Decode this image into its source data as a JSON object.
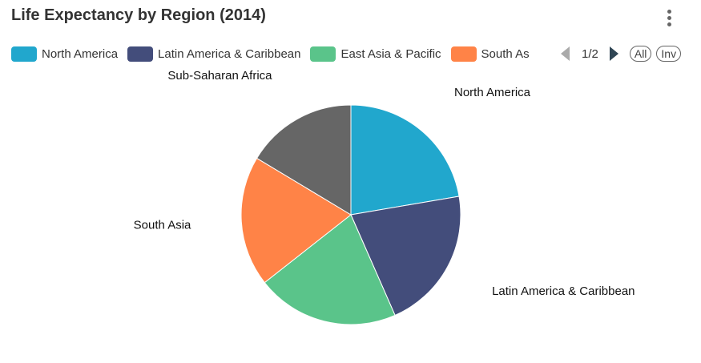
{
  "header": {
    "title": "Life Expectancy by Region (2014)"
  },
  "legend": {
    "items": [
      {
        "label": "North America",
        "color": "#21a7cd"
      },
      {
        "label": "Latin America & Caribbean",
        "color": "#434d7b"
      },
      {
        "label": "East Asia & Pacific",
        "color": "#5ac48a"
      },
      {
        "label": "South Asia",
        "color": "#ff8347"
      }
    ],
    "page": "1/2",
    "all_label": "All",
    "inv_label": "Inv"
  },
  "chart_data": {
    "type": "pie",
    "categories": [
      "North America",
      "Latin America & Caribbean",
      "East Asia & Pacific",
      "South Asia",
      "Sub-Saharan Africa"
    ],
    "values": [
      79.1,
      74.8,
      74.4,
      68.1,
      58.1
    ],
    "colors": [
      "#21a7cd",
      "#434d7b",
      "#5ac48a",
      "#ff8347",
      "#666666"
    ],
    "start_angle_deg": 90,
    "direction": "clockwise"
  }
}
